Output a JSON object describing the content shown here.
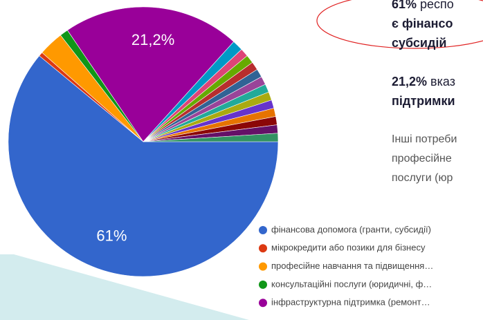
{
  "chart_data": {
    "type": "pie",
    "categories": [
      "фінансова допомога (гранти, субсидії)",
      "мікрокредити або позики для бізнесу",
      "професійне навчання та підвищення…",
      "консультаційні послуги (юридичні, ф…",
      "інфраструктурна підтримка (ремонт…",
      null,
      null,
      null,
      null,
      null,
      null,
      null,
      null,
      null,
      null,
      null,
      null,
      null
    ],
    "values": [
      61,
      0.5,
      3,
      1,
      21.2,
      1.3,
      1,
      1,
      1,
      1,
      1,
      1,
      1,
      1,
      1,
      1,
      1,
      1
    ],
    "value_labels": [
      "61%",
      null,
      null,
      null,
      "21,2%",
      null,
      null,
      null,
      null,
      null,
      null,
      null,
      null,
      null,
      null,
      null,
      null,
      null
    ],
    "colors": [
      "#3366cc",
      "#dc3912",
      "#ff9900",
      "#109618",
      "#990099",
      "#0099c6",
      "#dd4477",
      "#66aa00",
      "#b82e2e",
      "#316395",
      "#994499",
      "#22aa99",
      "#aaaa11",
      "#6633cc",
      "#e67300",
      "#8b0707",
      "#651067",
      "#329262"
    ],
    "legend_count": 5
  },
  "annotations": [
    [
      "61%",
      " респо"
    ],
    [
      "є ",
      "фінансо"
    ],
    [
      "субсидій"
    ],
    [
      "21,2%",
      " вказ"
    ],
    [
      "підтримки"
    ],
    [
      "Інші потреби"
    ],
    [
      "професійне"
    ],
    [
      "послуги (юр"
    ]
  ]
}
